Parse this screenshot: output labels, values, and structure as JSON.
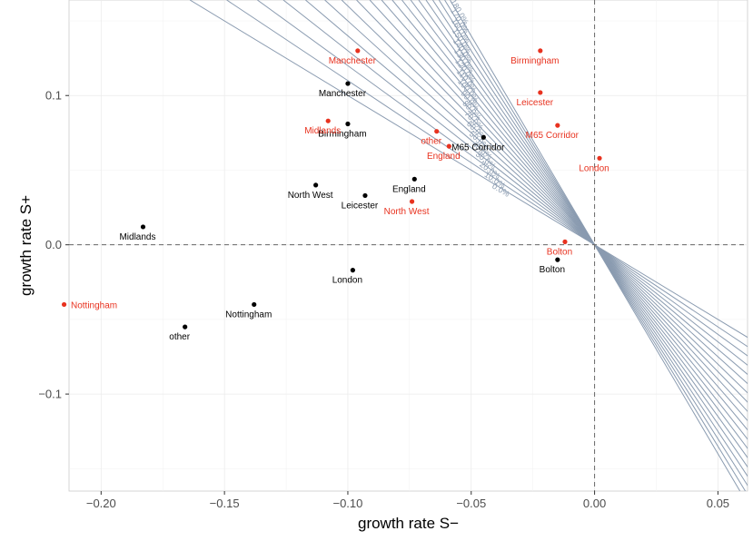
{
  "chart_data": {
    "type": "scatter",
    "title": "",
    "xlabel": "growth rate S−",
    "ylabel": "growth rate S+",
    "xlim": [
      -0.213,
      0.062
    ],
    "ylim": [
      -0.165,
      0.164
    ],
    "x_ticks": [
      -0.2,
      -0.15,
      -0.1,
      -0.05,
      0.0,
      0.05
    ],
    "x_tick_labels": [
      "−0.20",
      "−0.15",
      "−0.10",
      "−0.05",
      "0.00",
      "0.05"
    ],
    "y_ticks": [
      -0.1,
      0.0,
      0.1
    ],
    "y_tick_labels": [
      "−0.1",
      "0.0",
      "0.1"
    ],
    "grid": true,
    "reference_lines": {
      "x": 0.0,
      "y": 0.0,
      "style": "dashed"
    },
    "contours": {
      "color": "#8a9bb0",
      "values": [
        0,
        10,
        20,
        30,
        40,
        50,
        60,
        70,
        80,
        90,
        100,
        110,
        120,
        130,
        140,
        150,
        160,
        170,
        180
      ],
      "labels": [
        "0.0%",
        "10.0%",
        "20.0%",
        "30.0%",
        "40.0%",
        "50.0%",
        "60.0%",
        "70.0%",
        "80.0%",
        "90.0%",
        "100.0%",
        "110.0%",
        "120.0%",
        "130.0%",
        "140.0%",
        "150.0%",
        "160.0%",
        "170.0%",
        "180.0%"
      ]
    },
    "series": [
      {
        "color": "#000000",
        "points": [
          {
            "label": "Manchester",
            "x": -0.1,
            "y": 0.108
          },
          {
            "label": "Birmingham",
            "x": -0.1,
            "y": 0.081
          },
          {
            "label": "M65 Corridor",
            "x": -0.045,
            "y": 0.072
          },
          {
            "label": "England",
            "x": -0.073,
            "y": 0.044
          },
          {
            "label": "North West",
            "x": -0.113,
            "y": 0.04
          },
          {
            "label": "Leicester",
            "x": -0.093,
            "y": 0.033
          },
          {
            "label": "Midlands",
            "x": -0.183,
            "y": 0.012
          },
          {
            "label": "London",
            "x": -0.098,
            "y": -0.017
          },
          {
            "label": "Bolton",
            "x": -0.015,
            "y": -0.01
          },
          {
            "label": "Nottingham",
            "x": -0.138,
            "y": -0.04
          },
          {
            "label": "other",
            "x": -0.166,
            "y": -0.055
          }
        ]
      },
      {
        "color": "#e8321f",
        "points": [
          {
            "label": "Manchester",
            "x": -0.096,
            "y": 0.13
          },
          {
            "label": "Birmingham",
            "x": -0.022,
            "y": 0.13
          },
          {
            "label": "Leicester",
            "x": -0.022,
            "y": 0.102
          },
          {
            "label": "M65 Corridor",
            "x": -0.015,
            "y": 0.08
          },
          {
            "label": "Midlands",
            "x": -0.108,
            "y": 0.083
          },
          {
            "label": "other",
            "x": -0.064,
            "y": 0.076
          },
          {
            "label": "England",
            "x": -0.059,
            "y": 0.066
          },
          {
            "label": "London",
            "x": 0.002,
            "y": 0.058
          },
          {
            "label": "North West",
            "x": -0.074,
            "y": 0.029
          },
          {
            "label": "Bolton",
            "x": -0.012,
            "y": 0.002
          },
          {
            "label": "Nottingham",
            "x": -0.215,
            "y": -0.04
          }
        ]
      }
    ]
  }
}
